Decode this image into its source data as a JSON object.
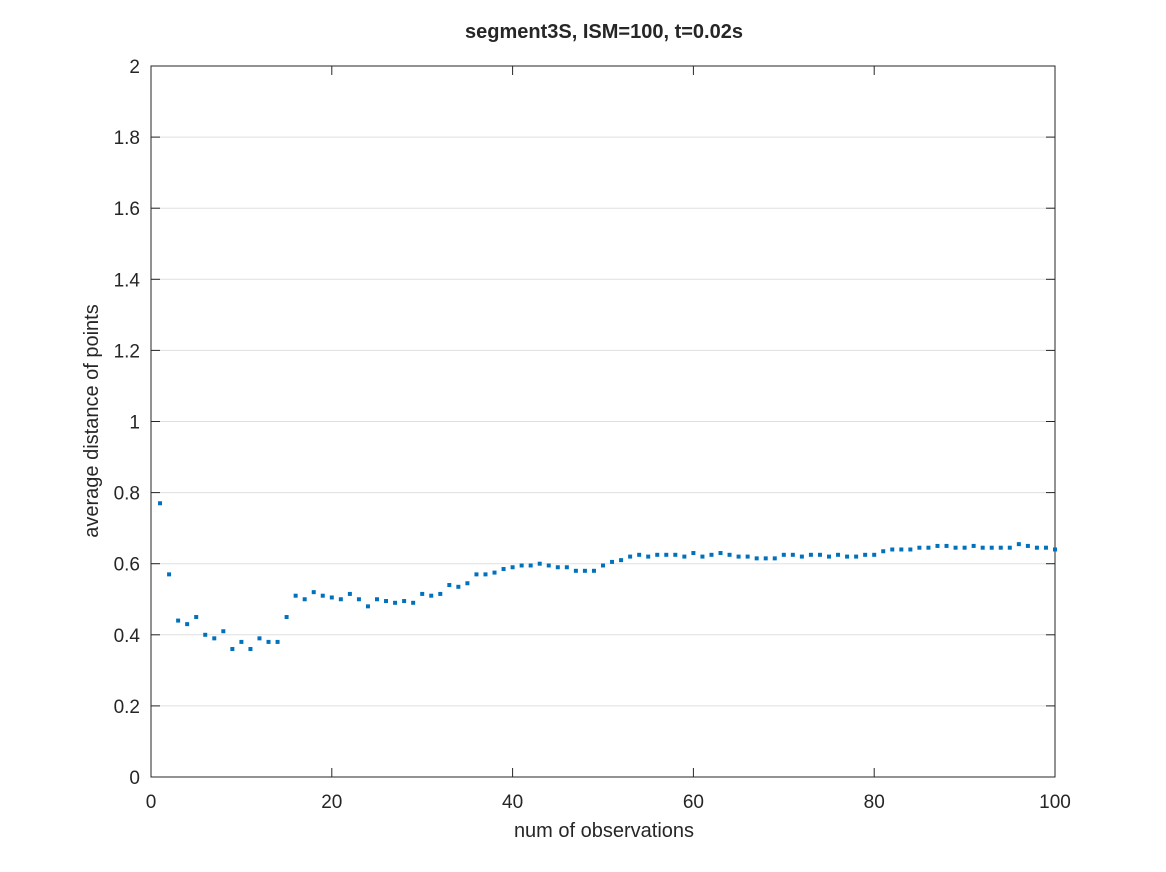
{
  "chart_data": {
    "type": "scatter",
    "title": "segment3S, ISM=100, t=0.02s",
    "xlabel": "num of observations",
    "ylabel": "average distance of points",
    "xlim": [
      0,
      100
    ],
    "ylim": [
      0,
      2
    ],
    "xticks": [
      "0",
      "20",
      "40",
      "60",
      "80",
      "100"
    ],
    "yticks": [
      "0",
      "0.2",
      "0.4",
      "0.6",
      "0.8",
      "1",
      "1.2",
      "1.4",
      "1.6",
      "1.8",
      "2"
    ],
    "grid": "horizontal",
    "series": [
      {
        "color": "#0072BD",
        "x": [
          1,
          2,
          3,
          4,
          5,
          6,
          7,
          8,
          9,
          10,
          11,
          12,
          13,
          14,
          15,
          16,
          17,
          18,
          19,
          20,
          21,
          22,
          23,
          24,
          25,
          26,
          27,
          28,
          29,
          30,
          31,
          32,
          33,
          34,
          35,
          36,
          37,
          38,
          39,
          40,
          41,
          42,
          43,
          44,
          45,
          46,
          47,
          48,
          49,
          50,
          51,
          52,
          53,
          54,
          55,
          56,
          57,
          58,
          59,
          60,
          61,
          62,
          63,
          64,
          65,
          66,
          67,
          68,
          69,
          70,
          71,
          72,
          73,
          74,
          75,
          76,
          77,
          78,
          79,
          80,
          81,
          82,
          83,
          84,
          85,
          86,
          87,
          88,
          89,
          90,
          91,
          92,
          93,
          94,
          95,
          96,
          97,
          98,
          99,
          100
        ],
        "y": [
          0.77,
          0.57,
          0.44,
          0.43,
          0.45,
          0.4,
          0.39,
          0.41,
          0.36,
          0.38,
          0.36,
          0.39,
          0.38,
          0.38,
          0.45,
          0.51,
          0.5,
          0.52,
          0.51,
          0.505,
          0.5,
          0.515,
          0.5,
          0.48,
          0.5,
          0.495,
          0.49,
          0.495,
          0.49,
          0.515,
          0.51,
          0.515,
          0.54,
          0.535,
          0.545,
          0.57,
          0.57,
          0.575,
          0.585,
          0.59,
          0.595,
          0.595,
          0.6,
          0.595,
          0.59,
          0.59,
          0.58,
          0.58,
          0.58,
          0.595,
          0.605,
          0.61,
          0.62,
          0.625,
          0.62,
          0.625,
          0.625,
          0.625,
          0.62,
          0.63,
          0.62,
          0.625,
          0.63,
          0.625,
          0.62,
          0.62,
          0.615,
          0.615,
          0.615,
          0.625,
          0.625,
          0.62,
          0.625,
          0.625,
          0.62,
          0.625,
          0.62,
          0.62,
          0.625,
          0.625,
          0.635,
          0.64,
          0.64,
          0.64,
          0.645,
          0.645,
          0.65,
          0.65,
          0.645,
          0.645,
          0.65,
          0.645,
          0.645,
          0.645,
          0.645,
          0.655,
          0.65,
          0.645,
          0.645,
          0.64
        ]
      }
    ]
  }
}
